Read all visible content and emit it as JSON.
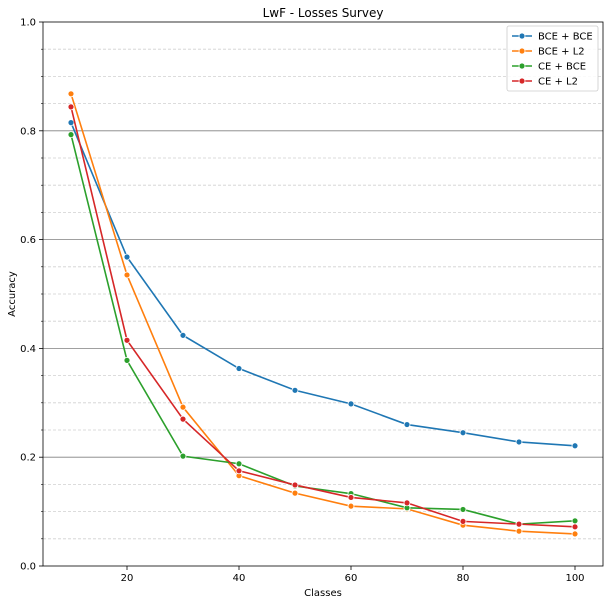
{
  "chart_data": {
    "type": "line",
    "title": "LwF - Losses Survey",
    "xlabel": "Classes",
    "ylabel": "Accuracy",
    "xlim": [
      5,
      105
    ],
    "ylim": [
      0,
      1.0
    ],
    "x": [
      10,
      20,
      30,
      40,
      50,
      60,
      70,
      80,
      90,
      100
    ],
    "x_ticks": [
      20,
      40,
      60,
      80,
      100
    ],
    "x_tick_labels": [
      "20",
      "40",
      "60",
      "80",
      "100"
    ],
    "y_ticks": [
      0,
      0.2,
      0.4,
      0.6,
      0.8,
      1.0
    ],
    "y_tick_labels": [
      "0.0",
      "0.2",
      "0.4",
      "0.6",
      "0.8",
      "1.0"
    ],
    "grid": {
      "major_y": true,
      "minor_y": true
    },
    "legend_position": "top-right",
    "series": [
      {
        "name": "BCE + BCE",
        "color": "#1f77b4",
        "values": [
          0.815,
          0.568,
          0.424,
          0.363,
          0.323,
          0.298,
          0.26,
          0.245,
          0.228,
          0.221
        ]
      },
      {
        "name": "BCE + L2",
        "color": "#ff7f0e",
        "values": [
          0.868,
          0.535,
          0.292,
          0.166,
          0.134,
          0.11,
          0.105,
          0.075,
          0.064,
          0.059
        ]
      },
      {
        "name": "CE + BCE",
        "color": "#2ca02c",
        "values": [
          0.793,
          0.378,
          0.202,
          0.188,
          0.147,
          0.133,
          0.107,
          0.104,
          0.077,
          0.083
        ]
      },
      {
        "name": "CE + L2",
        "color": "#d62728",
        "values": [
          0.844,
          0.415,
          0.27,
          0.175,
          0.149,
          0.126,
          0.116,
          0.082,
          0.077,
          0.072
        ]
      }
    ]
  }
}
